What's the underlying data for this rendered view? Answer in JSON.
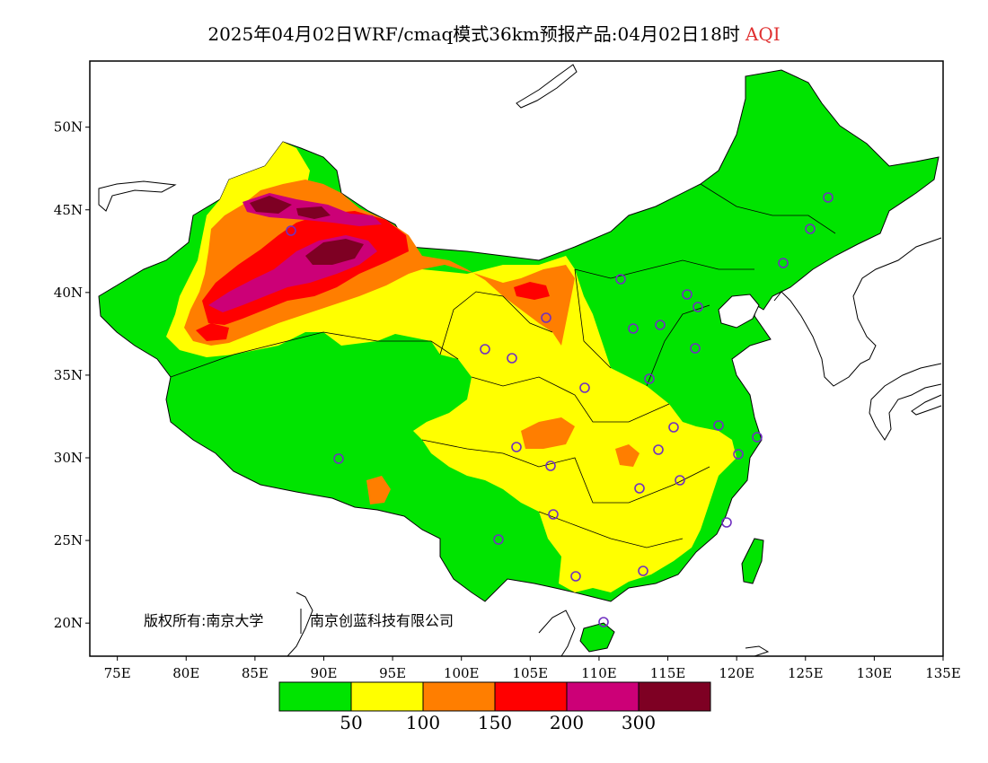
{
  "title": {
    "main": "2025年04月02日WRF/cmaq模式36km预报产品:04月02日18时",
    "variable": "AQI"
  },
  "axes": {
    "lon_ticks": [
      "75E",
      "80E",
      "85E",
      "90E",
      "95E",
      "100E",
      "105E",
      "110E",
      "115E",
      "120E",
      "125E",
      "130E",
      "135E"
    ],
    "lat_ticks": [
      "20N",
      "25N",
      "30N",
      "35N",
      "40N",
      "45N",
      "50N"
    ],
    "lon_range": [
      73,
      135
    ],
    "lat_range": [
      18,
      54
    ]
  },
  "copyright": {
    "owner_a": "版权所有:南京大学",
    "owner_b": "南京创蓝科技有限公司"
  },
  "legend": {
    "colors": [
      "#00e400",
      "#ffff00",
      "#ff7e00",
      "#ff0000",
      "#cc0077",
      "#7e0023"
    ],
    "labels": [
      "50",
      "100",
      "150",
      "200",
      "300"
    ]
  },
  "colors": {
    "good": "#00e400",
    "moderate": "#ffff00",
    "usg": "#ff7e00",
    "unhealthy": "#ff0000",
    "very_unhealthy": "#cc0077",
    "hazardous": "#7e0023",
    "station_marker": "#7030c0"
  }
}
